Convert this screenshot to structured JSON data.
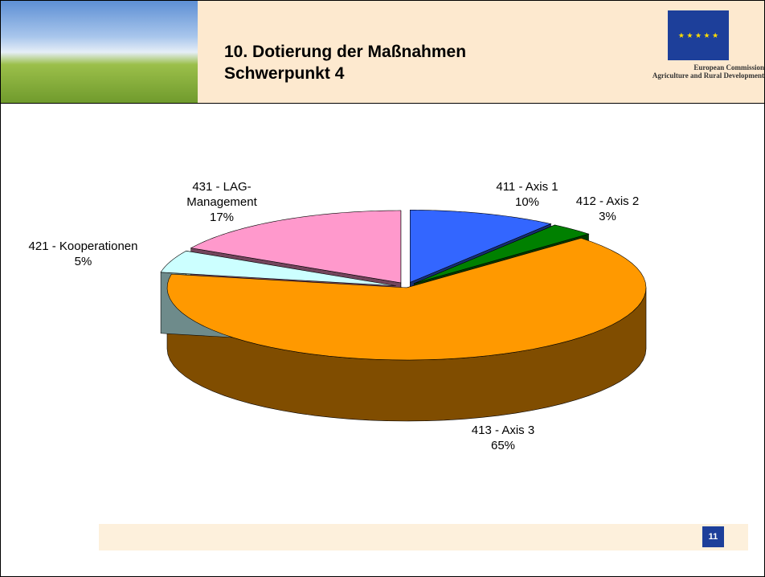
{
  "header": {
    "title_line1": "10. Dotierung der Maßnahmen",
    "title_line2": "Schwerpunkt 4",
    "logo_line1": "European Commission",
    "logo_line2": "Agriculture and Rural Development"
  },
  "page_number": "11",
  "chart_data": {
    "type": "pie",
    "categories": [
      "411 - Axis 1",
      "412 - Axis 2",
      "413 - Axis 3",
      "421 - Kooperationen",
      "431 - LAG-Management"
    ],
    "values": [
      10,
      3,
      65,
      5,
      17
    ],
    "value_labels": [
      "10%",
      "3%",
      "65%",
      "5%",
      "17%"
    ],
    "colors": [
      "#3366ff",
      "#008000",
      "#ff9900",
      "#ccffff",
      "#ff99cc"
    ]
  }
}
